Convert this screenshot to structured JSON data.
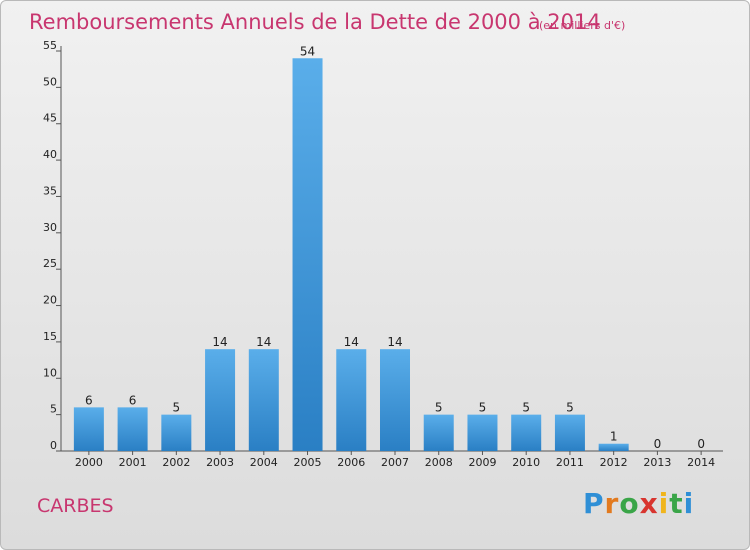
{
  "commune": "CARBES",
  "logo_text": [
    "P",
    "r",
    "o",
    "x",
    "i",
    "t",
    "i"
  ],
  "colors": {
    "accent": "#c8366f",
    "bar_light": "#5aaeea",
    "bar_dark": "#2a7fc4"
  },
  "chart_data": {
    "type": "bar",
    "title": "Remboursements Annuels de la Dette de 2000 à 2014",
    "unit_label": "(en milliers d'€)",
    "xlabel": "",
    "ylabel": "",
    "categories": [
      "2000",
      "2001",
      "2002",
      "2003",
      "2004",
      "2005",
      "2006",
      "2007",
      "2008",
      "2009",
      "2010",
      "2011",
      "2012",
      "2013",
      "2014"
    ],
    "values": [
      6,
      6,
      5,
      14,
      14,
      54,
      14,
      14,
      5,
      5,
      5,
      5,
      1,
      0,
      0
    ],
    "ylim": [
      0,
      55
    ],
    "yticks": [
      0,
      5,
      10,
      15,
      20,
      25,
      30,
      35,
      40,
      45,
      50,
      55
    ],
    "grid": false,
    "legend": "none"
  }
}
